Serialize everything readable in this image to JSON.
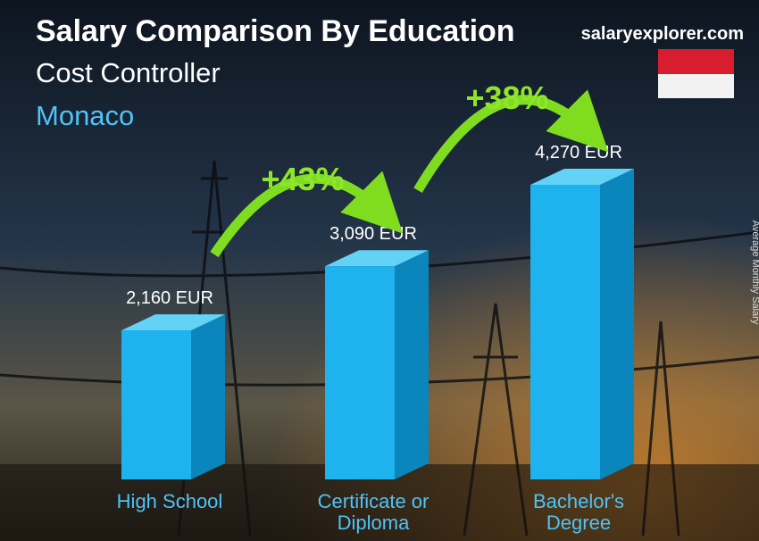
{
  "chart_data": {
    "type": "bar3d",
    "title": "Salary Comparison By Education",
    "subtitle": "Cost Controller",
    "location": "Monaco",
    "brand": "salaryexplorer.com",
    "ylabel": "Average Monthly Salary",
    "categories": [
      "High School",
      "Certificate or Diploma",
      "Bachelor's Degree"
    ],
    "values": [
      2160,
      3090,
      4270
    ],
    "value_labels": [
      "2,160 EUR",
      "3,090 EUR",
      "4,270 EUR"
    ],
    "color": "#1eb2ee",
    "annotations": [
      "+43%",
      "+38%"
    ]
  }
}
